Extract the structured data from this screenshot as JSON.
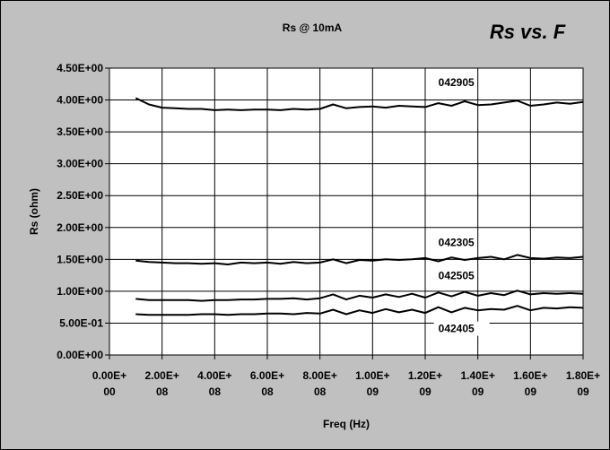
{
  "chart_data": {
    "type": "line",
    "title": "Rs @ 10mA",
    "subtitle": "Rs vs. F",
    "xlabel": "Freq (Hz)",
    "ylabel": "Rs (ohm)",
    "xlim": [
      0,
      1800000000
    ],
    "ylim": [
      0,
      4.5
    ],
    "x_ticks": [
      0,
      200000000,
      400000000,
      600000000,
      800000000,
      1000000000,
      1200000000,
      1400000000,
      1600000000,
      1800000000
    ],
    "x_tick_labels": [
      [
        "0.00E+",
        "00"
      ],
      [
        "2.00E+",
        "08"
      ],
      [
        "4.00E+",
        "08"
      ],
      [
        "6.00E+",
        "08"
      ],
      [
        "8.00E+",
        "08"
      ],
      [
        "1.00E+",
        "09"
      ],
      [
        "1.20E+",
        "09"
      ],
      [
        "1.40E+",
        "09"
      ],
      [
        "1.60E+",
        "09"
      ],
      [
        "1.80E+",
        "09"
      ]
    ],
    "y_ticks": [
      0,
      0.5,
      1.0,
      1.5,
      2.0,
      2.5,
      3.0,
      3.5,
      4.0,
      4.5
    ],
    "y_tick_labels": [
      "0.00E+00",
      "5.00E-01",
      "1.00E+00",
      "1.50E+00",
      "2.00E+00",
      "2.50E+00",
      "3.00E+00",
      "3.50E+00",
      "4.00E+00",
      "4.50E+00"
    ],
    "grid": true,
    "legend": "none",
    "line_color": "#000000",
    "plot_background": "#ffffff",
    "chart_background": "#c0c0c0",
    "x": [
      100000000,
      150000000,
      200000000,
      250000000,
      300000000,
      350000000,
      400000000,
      450000000,
      500000000,
      550000000,
      600000000,
      650000000,
      700000000,
      750000000,
      800000000,
      850000000,
      900000000,
      950000000,
      1000000000,
      1050000000,
      1100000000,
      1150000000,
      1200000000,
      1250000000,
      1300000000,
      1350000000,
      1400000000,
      1450000000,
      1500000000,
      1550000000,
      1600000000,
      1650000000,
      1700000000,
      1750000000,
      1800000000
    ],
    "series": [
      {
        "name": "042905",
        "values": [
          4.03,
          3.93,
          3.88,
          3.87,
          3.86,
          3.86,
          3.84,
          3.85,
          3.84,
          3.85,
          3.85,
          3.84,
          3.86,
          3.85,
          3.86,
          3.93,
          3.87,
          3.89,
          3.9,
          3.88,
          3.91,
          3.9,
          3.89,
          3.95,
          3.91,
          3.98,
          3.92,
          3.93,
          3.96,
          3.99,
          3.91,
          3.93,
          3.96,
          3.94,
          3.97
        ]
      },
      {
        "name": "042305",
        "values": [
          1.48,
          1.46,
          1.45,
          1.44,
          1.44,
          1.43,
          1.44,
          1.42,
          1.45,
          1.44,
          1.45,
          1.43,
          1.46,
          1.44,
          1.45,
          1.5,
          1.44,
          1.49,
          1.48,
          1.5,
          1.49,
          1.5,
          1.52,
          1.47,
          1.53,
          1.49,
          1.52,
          1.54,
          1.5,
          1.57,
          1.52,
          1.51,
          1.53,
          1.52,
          1.54
        ]
      },
      {
        "name": "042505",
        "values": [
          0.88,
          0.86,
          0.86,
          0.86,
          0.86,
          0.85,
          0.86,
          0.86,
          0.87,
          0.87,
          0.88,
          0.88,
          0.89,
          0.87,
          0.89,
          0.95,
          0.87,
          0.93,
          0.9,
          0.95,
          0.91,
          0.96,
          0.9,
          0.98,
          0.92,
          0.99,
          0.93,
          0.97,
          0.94,
          1.01,
          0.95,
          0.97,
          0.96,
          0.97,
          0.96
        ]
      },
      {
        "name": "042405",
        "values": [
          0.64,
          0.63,
          0.63,
          0.63,
          0.63,
          0.64,
          0.64,
          0.63,
          0.64,
          0.64,
          0.65,
          0.65,
          0.64,
          0.66,
          0.65,
          0.71,
          0.64,
          0.7,
          0.66,
          0.72,
          0.67,
          0.71,
          0.66,
          0.75,
          0.67,
          0.74,
          0.7,
          0.72,
          0.71,
          0.77,
          0.7,
          0.74,
          0.73,
          0.75,
          0.74
        ]
      }
    ]
  }
}
